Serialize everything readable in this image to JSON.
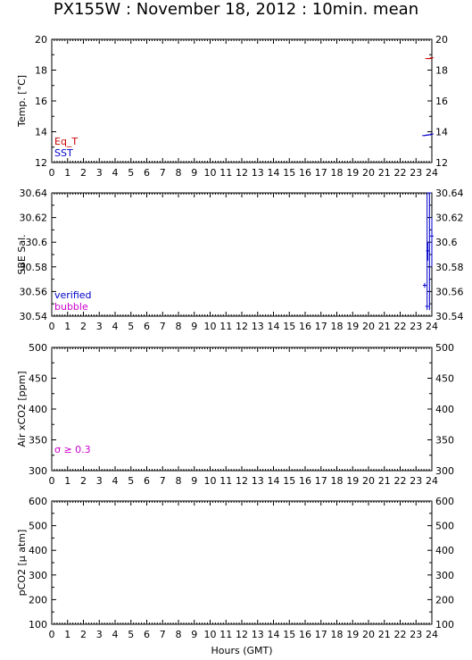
{
  "title": "PX155W : November 18, 2012 : 10min. mean",
  "xlabel": "Hours (GMT)",
  "chart_data": [
    {
      "type": "line",
      "panel": "temperature",
      "ylabel": "Temp. [°C]",
      "ylim": [
        12,
        20
      ],
      "yticks": [
        "12",
        "14",
        "16",
        "18",
        "20"
      ],
      "xlim": [
        0,
        24
      ],
      "xticks": [
        "0",
        "1",
        "2",
        "3",
        "4",
        "5",
        "6",
        "7",
        "8",
        "9",
        "10",
        "11",
        "12",
        "13",
        "14",
        "15",
        "16",
        "17",
        "18",
        "19",
        "20",
        "21",
        "22",
        "23",
        "24"
      ],
      "legend": [
        {
          "label": "Eq_T",
          "color": "#cc0000"
        },
        {
          "label": "SST",
          "color": "#0000cc"
        }
      ],
      "series": [
        {
          "name": "Eq_T",
          "color": "#cc0000",
          "x": [
            23.7,
            23.85,
            24.0
          ],
          "y": [
            18.75,
            18.75,
            18.8
          ]
        },
        {
          "name": "SST",
          "color": "#0000cc",
          "x": [
            23.5,
            23.7,
            23.85,
            24.0
          ],
          "y": [
            13.75,
            13.78,
            13.8,
            13.85
          ]
        }
      ]
    },
    {
      "type": "line",
      "panel": "salinity",
      "ylabel": "SBE Sal.",
      "ylim": [
        30.54,
        30.64
      ],
      "yticks": [
        "30.54",
        "30.56",
        "30.58",
        "30.6",
        "30.62",
        "30.64"
      ],
      "xlim": [
        0,
        24
      ],
      "xticks": [
        "0",
        "1",
        "2",
        "3",
        "4",
        "5",
        "6",
        "7",
        "8",
        "9",
        "10",
        "11",
        "12",
        "13",
        "14",
        "15",
        "16",
        "17",
        "18",
        "19",
        "20",
        "21",
        "22",
        "23",
        "24"
      ],
      "legend": [
        {
          "label": "verified",
          "color": "#0000cc"
        },
        {
          "label": "bubble",
          "color": "#cc00cc"
        }
      ],
      "series": [
        {
          "name": "verified",
          "color": "#0000cc",
          "x": [
            23.55,
            23.7,
            23.75,
            23.85,
            24.0
          ],
          "y": [
            30.565,
            30.548,
            30.593,
            30.64,
            30.605
          ],
          "err_low": [
            30.563,
            30.545,
            30.585,
            30.545,
            30.58
          ],
          "err_high": [
            30.567,
            30.64,
            30.6,
            30.64,
            30.62
          ]
        }
      ]
    },
    {
      "type": "line",
      "panel": "air_xco2",
      "ylabel": "Air xCO2 [ppm]",
      "ylim": [
        300,
        500
      ],
      "yticks": [
        "300",
        "350",
        "400",
        "450",
        "500"
      ],
      "xlim": [
        0,
        24
      ],
      "xticks": [
        "0",
        "1",
        "2",
        "3",
        "4",
        "5",
        "6",
        "7",
        "8",
        "9",
        "10",
        "11",
        "12",
        "13",
        "14",
        "15",
        "16",
        "17",
        "18",
        "19",
        "20",
        "21",
        "22",
        "23",
        "24"
      ],
      "annotation": {
        "text": "σ ≥ 0.3",
        "color": "#cc00cc"
      },
      "series": []
    },
    {
      "type": "line",
      "panel": "pco2",
      "ylabel": "pCO2 [μ atm]",
      "ylim": [
        100,
        600
      ],
      "yticks": [
        "100",
        "200",
        "300",
        "400",
        "500",
        "600"
      ],
      "xlim": [
        0,
        24
      ],
      "xticks": [
        "0",
        "1",
        "2",
        "3",
        "4",
        "5",
        "6",
        "7",
        "8",
        "9",
        "10",
        "11",
        "12",
        "13",
        "14",
        "15",
        "16",
        "17",
        "18",
        "19",
        "20",
        "21",
        "22",
        "23",
        "24"
      ],
      "series": []
    }
  ]
}
